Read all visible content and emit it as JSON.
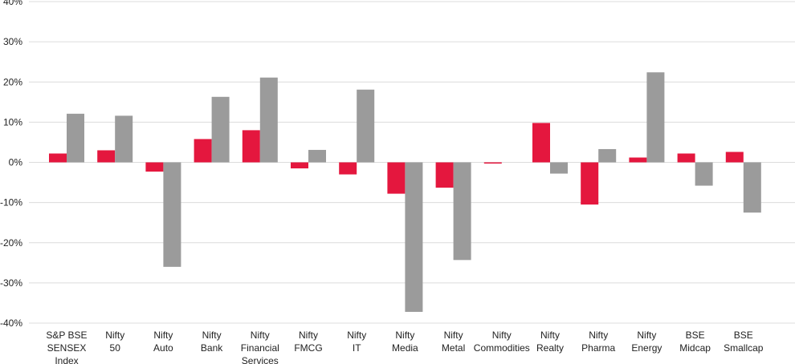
{
  "chart_data": {
    "type": "bar",
    "categories": [
      [
        "S&P BSE",
        "SENSEX",
        "Index"
      ],
      [
        "Nifty",
        "50"
      ],
      [
        "Nifty",
        "Auto"
      ],
      [
        "Nifty",
        "Bank"
      ],
      [
        "Nifty",
        "Financial",
        "Services"
      ],
      [
        "Nifty",
        "FMCG"
      ],
      [
        "Nifty",
        "IT"
      ],
      [
        "Nifty",
        "Media"
      ],
      [
        "Nifty",
        "Metal"
      ],
      [
        "Nifty",
        "Commodities"
      ],
      [
        "Nifty",
        "Realty"
      ],
      [
        "Nifty",
        "Pharma"
      ],
      [
        "Nifty",
        "Energy"
      ],
      [
        "BSE",
        "Midcap"
      ],
      [
        "BSE",
        "Smallcap"
      ]
    ],
    "series": [
      {
        "color": "#e4173e",
        "values": [
          2.2,
          3.0,
          -2.3,
          5.8,
          8.0,
          -1.5,
          -3.0,
          -7.8,
          -6.3,
          -0.3,
          9.8,
          -10.5,
          1.2,
          2.2,
          2.6
        ]
      },
      {
        "color": "#9b9b9b",
        "values": [
          12.1,
          11.6,
          -26.0,
          16.3,
          21.1,
          3.1,
          18.1,
          -37.2,
          -24.3,
          0,
          -2.8,
          3.3,
          22.4,
          -5.8,
          -12.5
        ]
      }
    ],
    "ylim": [
      -40,
      40
    ],
    "yticks": [
      40,
      30,
      20,
      10,
      0,
      -10,
      -20,
      -30,
      -40
    ],
    "ytick_labels": [
      "40%",
      "30%",
      "20%",
      "10%",
      "0%",
      "-10%",
      "-20%",
      "-30%",
      "-40%"
    ],
    "grid": true,
    "title": "",
    "xlabel": "",
    "ylabel": ""
  }
}
